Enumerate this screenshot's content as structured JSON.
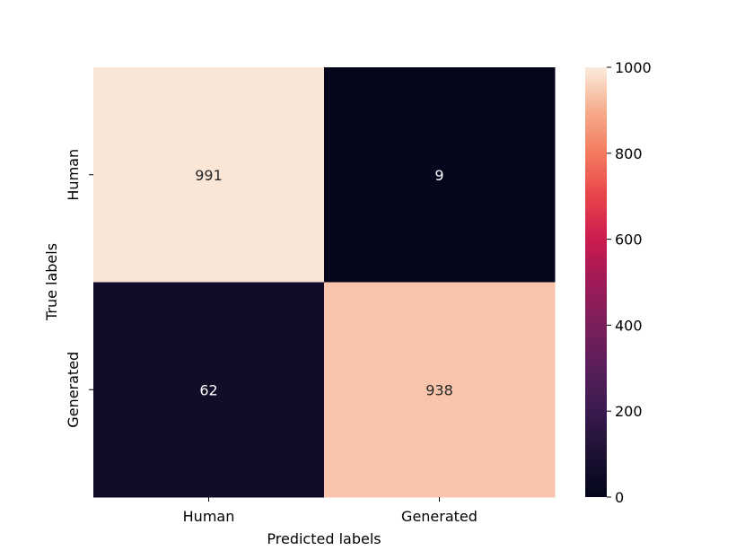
{
  "chart_data": {
    "type": "heatmap",
    "title": "",
    "xlabel": "Predicted labels",
    "ylabel": "True labels",
    "x_categories": [
      "Human",
      "Generated"
    ],
    "y_categories": [
      "Human",
      "Generated"
    ],
    "values": [
      [
        991,
        9
      ],
      [
        62,
        938
      ]
    ],
    "colorbar": {
      "min": 0,
      "max": 1000,
      "ticks": [
        0,
        200,
        400,
        600,
        800,
        1000
      ],
      "colormap": "rocket"
    },
    "colors": {
      "cell_low": "#03051a",
      "cell_high": "#faebdd",
      "annotation_light": "#ffffff",
      "annotation_dark": "#262626"
    }
  }
}
